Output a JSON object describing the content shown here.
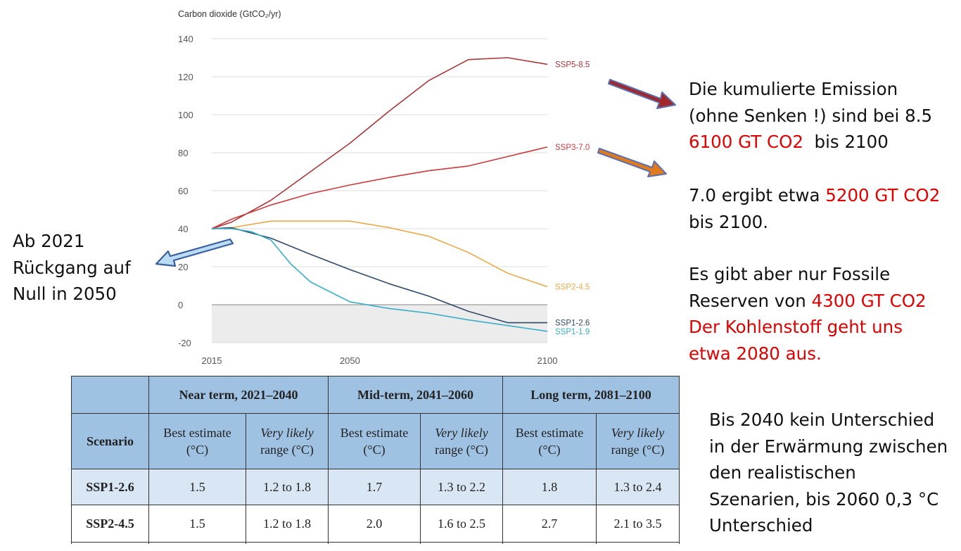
{
  "chart_data": {
    "type": "line",
    "ylabel": "Carbon dioxide (GtCO₂/yr)",
    "xlim": [
      2015,
      2100
    ],
    "ylim": [
      -20,
      140
    ],
    "yticks": [
      140,
      120,
      100,
      80,
      60,
      40,
      20,
      0,
      -20
    ],
    "xticks": [
      2015,
      2050,
      2100
    ],
    "grid": "horizontal",
    "shaded_below_zero": true,
    "series": [
      {
        "name": "SSP5-8.5",
        "color": "#a8373a",
        "x": [
          2015,
          2020,
          2030,
          2040,
          2050,
          2060,
          2070,
          2080,
          2090,
          2100
        ],
        "y": [
          40,
          43.5,
          55,
          70,
          85,
          102,
          118,
          129,
          130,
          126.5
        ]
      },
      {
        "name": "SSP3-7.0",
        "color": "#c93a3c",
        "x": [
          2015,
          2020,
          2030,
          2040,
          2050,
          2060,
          2070,
          2080,
          2090,
          2100
        ],
        "y": [
          40,
          45,
          52.5,
          58.5,
          63,
          67,
          70.5,
          73,
          78,
          83
        ]
      },
      {
        "name": "SSP2-4.5",
        "color": "#e8a94a",
        "x": [
          2015,
          2020,
          2030,
          2040,
          2050,
          2060,
          2070,
          2080,
          2090,
          2100
        ],
        "y": [
          40,
          40.5,
          44,
          44,
          44,
          40.5,
          36,
          27.5,
          16.5,
          9.5
        ]
      },
      {
        "name": "SSP1-2.6",
        "color": "#2f4a68",
        "x": [
          2015,
          2020,
          2030,
          2040,
          2050,
          2060,
          2070,
          2080,
          2090,
          2100
        ],
        "y": [
          40,
          40.5,
          35,
          26.5,
          18.5,
          11,
          4.5,
          -3.5,
          -9.5,
          -9.5
        ]
      },
      {
        "name": "SSP1-1.9",
        "color": "#3aaec6",
        "x": [
          2015,
          2020,
          2025,
          2030,
          2035,
          2040,
          2050,
          2060,
          2070,
          2080,
          2090,
          2100
        ],
        "y": [
          40,
          40,
          38.5,
          34,
          21.5,
          12,
          1.5,
          -2,
          -4.5,
          -8,
          -11,
          -14
        ]
      }
    ]
  },
  "notes": {
    "left": [
      "Ab 2021",
      "Rückgang auf",
      "Null in 2050"
    ],
    "r1_l1": "Die kumulierte Emission",
    "r1_l2": "(ohne Senken !) sind bei 8.5",
    "r1_l3_red": "6100 GT CO2",
    "r1_l3_rest": "  bis 2100",
    "r2_l1_a": "7.0 ergibt etwa ",
    "r2_l1_red": "5200 GT CO2",
    "r2_l2": "bis 2100.",
    "r3_l1": "Es gibt aber nur Fossile",
    "r3_l2_a": "Reserven von ",
    "r3_l2_red": "4300 GT CO2",
    "r3_l3_red": "Der Kohlenstoff geht uns",
    "r3_l4_red": "etwa 2080 aus.",
    "bottom": [
      "Bis 2040 kein Unterschied",
      "in der Erwärmung zwischen",
      "den realistischen",
      "Szenarien, bis 2060 0,3 °C",
      "Unterschied"
    ]
  },
  "arrows": [
    {
      "name": "ssp585-arrow",
      "color": "#a0282a",
      "border": "#5b6fb0"
    },
    {
      "name": "ssp370-arrow",
      "color": "#e07a1a",
      "border": "#5b6fb0"
    },
    {
      "name": "left-arrow",
      "color": "#bcdcf4",
      "border": "#3a5f9e"
    }
  ],
  "table": {
    "periods": [
      "Near term, 2021–2040",
      "Mid-term, 2041–2060",
      "Long term, 2081–2100"
    ],
    "scenario_header": "Scenario",
    "best_l1": "Best estimate",
    "best_l2": "(°C)",
    "range_l1": "Very likely",
    "range_l2": "range (°C)",
    "rows": [
      {
        "name": "SSP1-2.6",
        "cells": [
          "1.5",
          "1.2 to 1.8",
          "1.7",
          "1.3 to 2.2",
          "1.8",
          "1.3 to 2.4"
        ]
      },
      {
        "name": "SSP2-4.5",
        "cells": [
          "1.5",
          "1.2 to 1.8",
          "2.0",
          "1.6 to 2.5",
          "2.7",
          "2.1 to 3.5"
        ]
      }
    ]
  }
}
